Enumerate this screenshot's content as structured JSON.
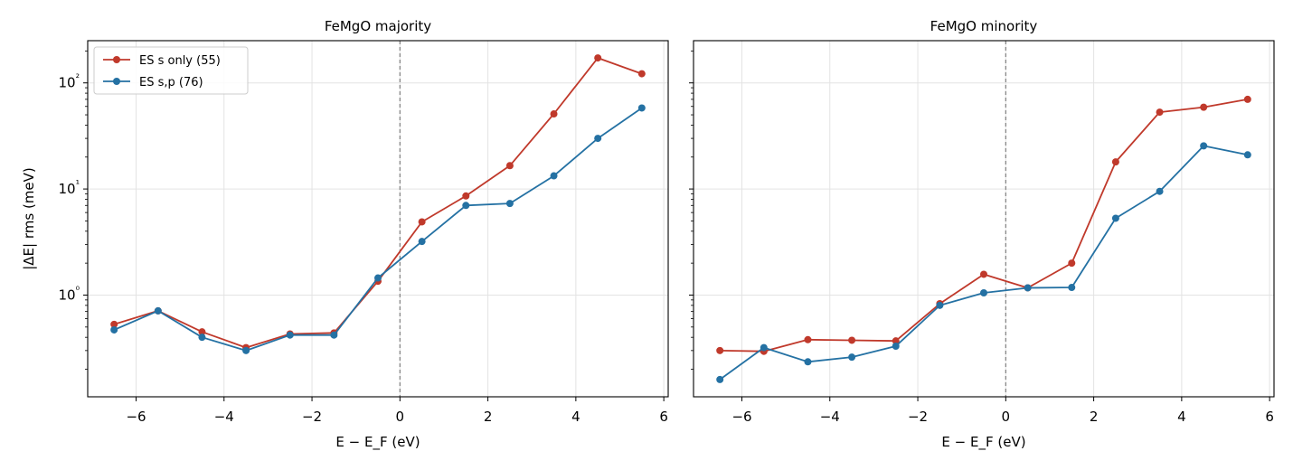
{
  "chart_data": [
    {
      "type": "line",
      "title": "FeMgO  majority",
      "xlabel": "E − E_F  (eV)",
      "ylabel": "|ΔE| rms  (meV)",
      "yscale": "log",
      "xlim": [
        -7.1,
        6.1
      ],
      "ylim": [
        0.11,
        250
      ],
      "xticks": [
        -6,
        -4,
        -2,
        0,
        2,
        4,
        6
      ],
      "xtick_labels": [
        "−6",
        "−4",
        "−2",
        "0",
        "2",
        "4",
        "6"
      ],
      "yticks": [
        1,
        10,
        100
      ],
      "ytick_labels": [
        "10⁰",
        "10¹",
        "10²"
      ],
      "grid": true,
      "legend": "top-left",
      "vline_x": 0,
      "x": [
        -6.5,
        -5.5,
        -4.5,
        -3.5,
        -2.5,
        -1.5,
        -0.5,
        0.5,
        1.5,
        2.5,
        3.5,
        4.5,
        5.5
      ],
      "series": [
        {
          "name": "ES s only (55)",
          "color": "#c0392b",
          "values": [
            0.53,
            0.71,
            0.45,
            0.32,
            0.43,
            0.44,
            1.35,
            4.9,
            8.6,
            16.6,
            51,
            172,
            122
          ]
        },
        {
          "name": "ES s,p (76)",
          "color": "#2471a3",
          "values": [
            0.47,
            0.71,
            0.4,
            0.3,
            0.42,
            0.42,
            1.45,
            3.2,
            7.0,
            7.3,
            13.3,
            30,
            58
          ]
        }
      ]
    },
    {
      "type": "line",
      "title": "FeMgO  minority",
      "xlabel": "E − E_F  (eV)",
      "ylabel": "",
      "yscale": "log",
      "xlim": [
        -7.1,
        6.1
      ],
      "ylim": [
        0.11,
        250
      ],
      "xticks": [
        -6,
        -4,
        -2,
        0,
        2,
        4,
        6
      ],
      "xtick_labels": [
        "−6",
        "−4",
        "−2",
        "0",
        "2",
        "4",
        "6"
      ],
      "yticks": [
        1,
        10,
        100
      ],
      "ytick_labels": [],
      "grid": true,
      "legend": "none",
      "vline_x": 0,
      "x": [
        -6.5,
        -5.5,
        -4.5,
        -3.5,
        -2.5,
        -1.5,
        -0.5,
        0.5,
        1.5,
        2.5,
        3.5,
        4.5,
        5.5
      ],
      "series": [
        {
          "name": "ES s only (55)",
          "color": "#c0392b",
          "values": [
            0.3,
            0.295,
            0.38,
            0.375,
            0.37,
            0.83,
            1.57,
            1.17,
            2.0,
            18,
            53,
            59,
            70
          ]
        },
        {
          "name": "ES s,p (76)",
          "color": "#2471a3",
          "values": [
            0.16,
            0.32,
            0.235,
            0.26,
            0.33,
            0.8,
            1.05,
            1.17,
            1.18,
            5.3,
            9.5,
            25.5,
            21
          ]
        }
      ]
    }
  ]
}
